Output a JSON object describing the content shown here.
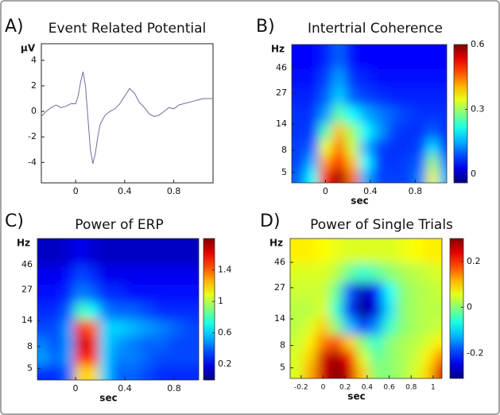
{
  "chart_data": [
    {
      "type": "line",
      "panel_label": "A)",
      "title": "Event Related Potential",
      "y_label": "μV",
      "x": [
        -0.28,
        -0.24,
        -0.2,
        -0.16,
        -0.12,
        -0.08,
        -0.04,
        0,
        0.02,
        0.04,
        0.06,
        0.08,
        0.1,
        0.12,
        0.14,
        0.16,
        0.18,
        0.2,
        0.24,
        0.28,
        0.32,
        0.36,
        0.4,
        0.44,
        0.48,
        0.52,
        0.56,
        0.6,
        0.64,
        0.68,
        0.72,
        0.76,
        0.8,
        0.84,
        0.88,
        0.92,
        0.96,
        1.0,
        1.04,
        1.08,
        1.12
      ],
      "values": [
        -0.4,
        0,
        0.3,
        0.5,
        0.3,
        0.4,
        0.6,
        0.6,
        1.2,
        2.3,
        3.1,
        2.0,
        -0.5,
        -3.0,
        -4.1,
        -3.3,
        -2.0,
        -1.0,
        -0.3,
        0,
        0.2,
        0.6,
        1.2,
        1.8,
        1.4,
        0.7,
        0.3,
        -0.2,
        -0.4,
        -0.3,
        0,
        0.3,
        0.2,
        0.5,
        0.6,
        0.7,
        0.8,
        0.9,
        1.0,
        1.0,
        1.0
      ],
      "color": "#6c6f9e",
      "xlim": [
        -0.28,
        1.12
      ],
      "ylim": [
        -5.6,
        5.3
      ],
      "xticks": [
        0,
        0.4,
        0.8
      ],
      "yticks": [
        4,
        2,
        0,
        -2,
        -4
      ]
    },
    {
      "type": "heatmap",
      "panel_label": "B)",
      "title": "Intertrial Coherence",
      "y_label": "Hz",
      "x_label": "sec",
      "x": [
        -0.24,
        -0.12,
        0,
        0.12,
        0.24,
        0.36,
        0.48,
        0.6,
        0.72,
        0.84,
        0.96,
        1.06
      ],
      "y": [
        4.6,
        6.2,
        8.5,
        12,
        17,
        25,
        37,
        56
      ],
      "z": [
        [
          0.1,
          0.2,
          0.5,
          0.58,
          0.45,
          0.15,
          0.08,
          0.08,
          0.08,
          0.12,
          0.35,
          0.15
        ],
        [
          0.08,
          0.15,
          0.42,
          0.52,
          0.4,
          0.2,
          0.08,
          0.07,
          0.08,
          0.1,
          0.3,
          0.12
        ],
        [
          0.08,
          0.1,
          0.35,
          0.45,
          0.33,
          0.15,
          0.08,
          0.07,
          0.07,
          0.08,
          0.18,
          0.08
        ],
        [
          0.07,
          0.08,
          0.25,
          0.4,
          0.3,
          0.2,
          0.14,
          0.08,
          0.07,
          0.07,
          0.1,
          0.07
        ],
        [
          0.07,
          0.07,
          0.14,
          0.26,
          0.2,
          0.15,
          0.12,
          0.1,
          0.08,
          0.07,
          0.07,
          0.07
        ],
        [
          0.06,
          0.06,
          0.1,
          0.17,
          0.1,
          0.08,
          0.07,
          0.06,
          0.06,
          0.06,
          0.06,
          0.06
        ],
        [
          0.05,
          0.05,
          0.08,
          0.14,
          0.07,
          0.06,
          0.05,
          0.05,
          0.05,
          0.05,
          0.05,
          0.05
        ],
        [
          0.04,
          0.04,
          0.06,
          0.1,
          0.05,
          0.04,
          0.04,
          0.04,
          0.04,
          0.04,
          0.04,
          0.04
        ]
      ],
      "xlim": [
        -0.3,
        1.08
      ],
      "ylim": [
        4,
        76
      ],
      "ylog": true,
      "colormap": "jet",
      "xticks": [
        0,
        0.4,
        0.8
      ],
      "yticks": [
        5,
        8,
        14,
        27,
        46
      ],
      "clim": [
        -0.04,
        0.6
      ],
      "cticks": [
        0.6,
        0.3,
        0
      ]
    },
    {
      "type": "heatmap",
      "panel_label": "C)",
      "title": "Power of ERP",
      "y_label": "Hz",
      "x_label": "sec",
      "x": [
        -0.26,
        -0.16,
        -0.06,
        0.04,
        0.14,
        0.24,
        0.34,
        0.46,
        0.58,
        0.7,
        0.82,
        0.94
      ],
      "y": [
        4.6,
        6.2,
        8.5,
        12,
        17,
        25,
        37,
        56
      ],
      "z": [
        [
          0.3,
          0.3,
          0.4,
          1.2,
          1.2,
          0.6,
          0.4,
          0.4,
          0.35,
          0.3,
          0.3,
          0.3
        ],
        [
          0.5,
          0.4,
          0.5,
          1.5,
          1.5,
          0.6,
          0.45,
          0.45,
          0.4,
          0.35,
          0.35,
          0.35
        ],
        [
          0.45,
          0.35,
          0.5,
          1.65,
          1.6,
          0.6,
          0.5,
          0.45,
          0.4,
          0.4,
          0.35,
          0.35
        ],
        [
          0.35,
          0.35,
          0.5,
          1.5,
          1.4,
          0.6,
          0.6,
          0.55,
          0.5,
          0.45,
          0.4,
          0.35
        ],
        [
          0.3,
          0.3,
          0.4,
          0.8,
          0.7,
          0.45,
          0.4,
          0.4,
          0.35,
          0.3,
          0.3,
          0.3
        ],
        [
          0.25,
          0.25,
          0.3,
          0.45,
          0.4,
          0.3,
          0.3,
          0.25,
          0.25,
          0.25,
          0.25,
          0.25
        ],
        [
          0.2,
          0.2,
          0.25,
          0.35,
          0.3,
          0.2,
          0.2,
          0.2,
          0.2,
          0.2,
          0.2,
          0.2
        ],
        [
          0.12,
          0.12,
          0.15,
          0.2,
          0.15,
          0.12,
          0.12,
          0.12,
          0.12,
          0.12,
          0.12,
          0.12
        ]
      ],
      "xlim": [
        -0.31,
        1.0
      ],
      "ylim": [
        3.9,
        81
      ],
      "ylog": true,
      "colormap": "jet",
      "xticks": [
        0,
        0.4,
        0.8
      ],
      "yticks": [
        5,
        8,
        14,
        27,
        46
      ],
      "clim": [
        0,
        1.8
      ],
      "cticks": [
        1.4,
        1,
        0.6,
        0.2
      ]
    },
    {
      "type": "heatmap",
      "panel_label": "D)",
      "title": "Power of Single Trials",
      "y_label": "Hz",
      "x_label": "sec",
      "x": [
        -0.24,
        -0.12,
        0,
        0.12,
        0.24,
        0.36,
        0.48,
        0.6,
        0.72,
        0.84,
        0.96,
        1.06
      ],
      "y": [
        4.6,
        6.2,
        8.5,
        12,
        17,
        25,
        37,
        56
      ],
      "z": [
        [
          0.05,
          0.12,
          0.25,
          0.3,
          0.25,
          0.1,
          0.0,
          0.0,
          0.02,
          0.05,
          0.1,
          0.25
        ],
        [
          0.05,
          0.1,
          0.25,
          0.28,
          0.22,
          0.05,
          -0.02,
          0.0,
          0.02,
          0.04,
          0.08,
          0.15
        ],
        [
          0.04,
          0.08,
          0.15,
          0.18,
          0.1,
          0.0,
          -0.05,
          0.0,
          0.02,
          0.03,
          0.05,
          0.08
        ],
        [
          0.03,
          0.05,
          0.1,
          0.0,
          -0.12,
          -0.2,
          -0.15,
          -0.05,
          0.0,
          0.02,
          0.03,
          0.04
        ],
        [
          0.03,
          0.03,
          0.05,
          -0.05,
          -0.2,
          -0.3,
          -0.25,
          -0.1,
          0.0,
          0.02,
          0.03,
          0.03
        ],
        [
          0.04,
          0.04,
          0.04,
          -0.02,
          -0.18,
          -0.28,
          -0.22,
          -0.08,
          0.0,
          0.02,
          0.03,
          0.04
        ],
        [
          0.05,
          0.05,
          0.05,
          0.03,
          -0.02,
          -0.05,
          -0.03,
          0.0,
          0.02,
          0.03,
          0.04,
          0.05
        ],
        [
          0.08,
          0.08,
          0.07,
          0.06,
          0.05,
          0.05,
          0.05,
          0.05,
          0.06,
          0.07,
          0.08,
          0.08
        ]
      ],
      "xlim": [
        -0.3,
        1.08
      ],
      "ylim": [
        4,
        76
      ],
      "ylog": true,
      "colormap": "jet",
      "xticks": [
        -0.2,
        0,
        0.2,
        0.4,
        0.6,
        0.8,
        1
      ],
      "yticks": [
        5,
        8,
        14,
        27,
        46
      ],
      "clim": [
        -0.31,
        0.3
      ],
      "cticks": [
        0.2,
        0,
        -0.2
      ]
    }
  ]
}
